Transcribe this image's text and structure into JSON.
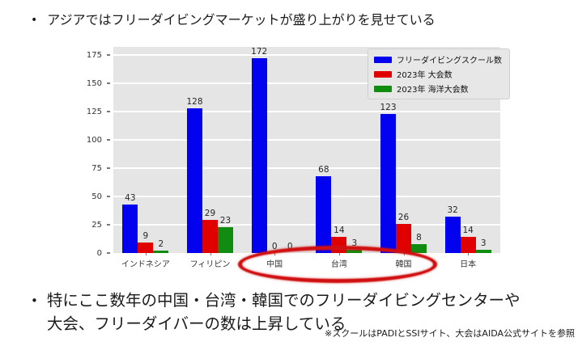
{
  "slide": {
    "bullet_glyph": "•",
    "bullet1": "アジアではフリーダイビングマーケットが盛り上がりを見せている",
    "bullet2_line1": "特にここ数年の中国・台湾・韓国でのフリーダイビングセンターや",
    "bullet2_line2": "大会、フリーダイバーの数は上昇している",
    "footnote": "※スクールはPADIとSSIサイト、大会はAIDA公式サイトを参照"
  },
  "chart_data": {
    "type": "bar",
    "title": "",
    "categories": [
      "インドネシア",
      "フィリピン",
      "中国",
      "台湾",
      "韓国",
      "日本"
    ],
    "series": [
      {
        "name": "フリーダイビングスクール数",
        "color": "#0202ee",
        "values": [
          43,
          128,
          172,
          68,
          123,
          32
        ]
      },
      {
        "name": "2023年 大会数",
        "color": "#e00000",
        "values": [
          9,
          29,
          0,
          14,
          26,
          14
        ]
      },
      {
        "name": "2023年 海洋大会数",
        "color": "#108c10",
        "values": [
          2,
          23,
          0,
          3,
          8,
          3
        ]
      }
    ],
    "xlabel": "",
    "ylabel": "",
    "yticks": [
      0,
      25,
      50,
      75,
      100,
      125,
      150,
      175
    ],
    "ylim": [
      0,
      182
    ],
    "grid": true,
    "plot_bg": "#e5e5e5",
    "gridline_color": "#ffffff",
    "legend_position": "top-right",
    "value_labels": true,
    "annotation": {
      "shape": "ellipse",
      "color": "#d01010",
      "around": [
        "中国",
        "台湾",
        "韓国"
      ]
    }
  }
}
